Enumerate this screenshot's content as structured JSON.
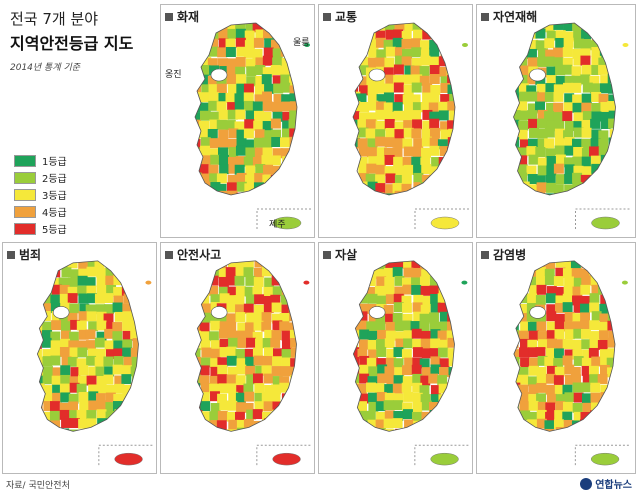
{
  "title": {
    "line1": "전국 7개 분야",
    "line2": "지역안전등급 지도",
    "subtitle": "2014년 통계 기준"
  },
  "legend": [
    {
      "label": "1등급",
      "color": "#1fa35a"
    },
    {
      "label": "2등급",
      "color": "#9acd3a"
    },
    {
      "label": "3등급",
      "color": "#f5e83a"
    },
    {
      "label": "4등급",
      "color": "#f0a13c"
    },
    {
      "label": "5등급",
      "color": "#e22d2a"
    }
  ],
  "panels": [
    {
      "title": "화재"
    },
    {
      "title": "교통"
    },
    {
      "title": "자연재해"
    },
    {
      "title": "범죄"
    },
    {
      "title": "안전사고"
    },
    {
      "title": "자살"
    },
    {
      "title": "감염병"
    }
  ],
  "map_labels": {
    "ulleung": "울릉",
    "ongjin": "옹진",
    "jeju": "제주"
  },
  "source": "자료/ 국민안전처",
  "logo": "연합뉴스"
}
